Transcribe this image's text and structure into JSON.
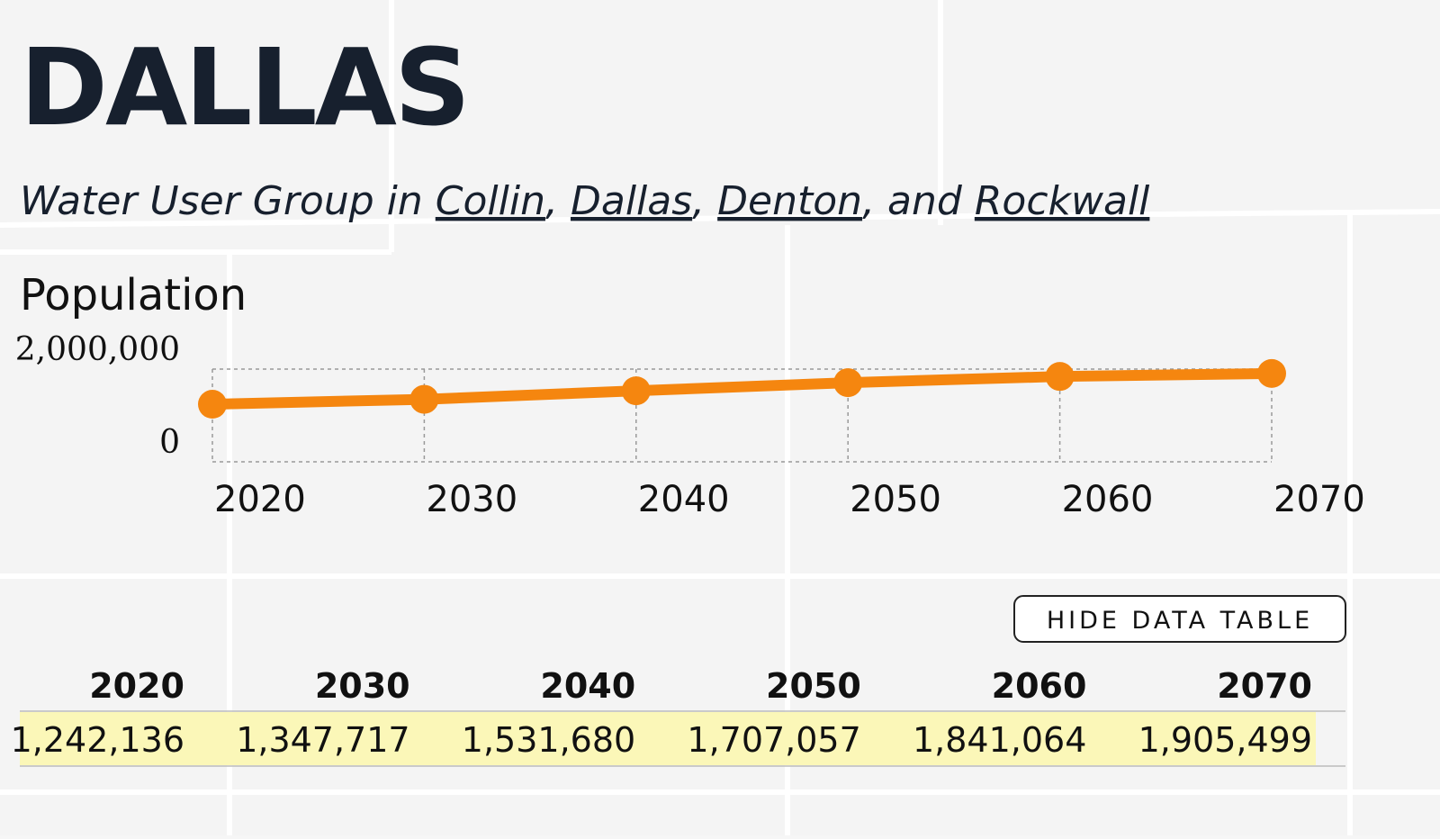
{
  "header": {
    "title": "DALLAS",
    "subtitle": {
      "lead": "Water User Group in",
      "links": [
        "Collin",
        "Dallas",
        "Denton",
        "Rockwall"
      ],
      "separators": [
        ",",
        ",",
        ", and"
      ]
    }
  },
  "chart_data": {
    "type": "line",
    "title": "Population",
    "x": [
      2020,
      2030,
      2040,
      2050,
      2060,
      2070
    ],
    "xlim": [
      2020,
      2070
    ],
    "xticks": [
      2020,
      2030,
      2040,
      2050,
      2060,
      2070
    ],
    "series": [
      {
        "name": "Population",
        "color": "#f5860f",
        "values": [
          1242136,
          1347717,
          1531680,
          1707057,
          1841064,
          1905499
        ],
        "value_labels": [
          "1,242,136",
          "1,347,717",
          "1,531,680",
          "1,707,057",
          "1,841,064",
          "1,905,499"
        ]
      }
    ],
    "ylim": [
      0,
      2000000
    ],
    "yticks": [
      0,
      {
        "value": 2000000,
        "label": "2,000,000"
      }
    ],
    "grid": true
  },
  "button": {
    "label": "HIDE DATA TABLE"
  }
}
